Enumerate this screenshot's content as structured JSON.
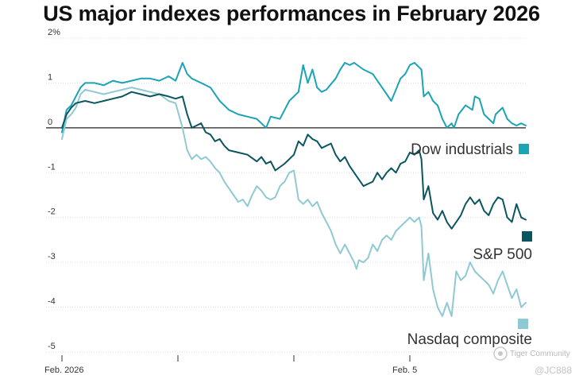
{
  "chart_data": {
    "type": "line",
    "title": "US major indexes performances in February 2026",
    "ylim": [
      -5,
      2
    ],
    "y_ticks": [
      {
        "value": 2,
        "label": "2%"
      },
      {
        "value": 1,
        "label": "1"
      },
      {
        "value": 0,
        "label": "0"
      },
      {
        "value": -1,
        "label": "-1"
      },
      {
        "value": -2,
        "label": "-2"
      },
      {
        "value": -3,
        "label": "-3"
      },
      {
        "value": -4,
        "label": "-4"
      },
      {
        "value": -5,
        "label": "-5"
      }
    ],
    "x_ticks": [
      {
        "t": 0,
        "label": "Feb. 2026"
      },
      {
        "t": 0.25,
        "label": ""
      },
      {
        "t": 0.5,
        "label": ""
      },
      {
        "t": 0.75,
        "label": "Feb. 5"
      }
    ],
    "series": [
      {
        "name": "Dow industrials",
        "color": "#1ba3b6",
        "points": [
          [
            0,
            -0.1
          ],
          [
            0.01,
            0.4
          ],
          [
            0.02,
            0.5
          ],
          [
            0.03,
            0.7
          ],
          [
            0.04,
            0.9
          ],
          [
            0.05,
            1.0
          ],
          [
            0.07,
            1.0
          ],
          [
            0.09,
            0.95
          ],
          [
            0.11,
            1.05
          ],
          [
            0.13,
            1.0
          ],
          [
            0.15,
            1.05
          ],
          [
            0.17,
            1.1
          ],
          [
            0.19,
            1.1
          ],
          [
            0.21,
            1.05
          ],
          [
            0.23,
            1.15
          ],
          [
            0.245,
            1.05
          ],
          [
            0.26,
            1.45
          ],
          [
            0.27,
            1.2
          ],
          [
            0.28,
            1.1
          ],
          [
            0.3,
            1.0
          ],
          [
            0.32,
            0.9
          ],
          [
            0.34,
            0.6
          ],
          [
            0.36,
            0.4
          ],
          [
            0.38,
            0.3
          ],
          [
            0.4,
            0.25
          ],
          [
            0.42,
            0.2
          ],
          [
            0.43,
            0.1
          ],
          [
            0.44,
            0.0
          ],
          [
            0.45,
            0.25
          ],
          [
            0.47,
            0.2
          ],
          [
            0.49,
            0.6
          ],
          [
            0.51,
            0.8
          ],
          [
            0.52,
            1.4
          ],
          [
            0.53,
            1.0
          ],
          [
            0.54,
            1.3
          ],
          [
            0.55,
            0.9
          ],
          [
            0.56,
            0.8
          ],
          [
            0.57,
            0.85
          ],
          [
            0.59,
            1.1
          ],
          [
            0.6,
            1.3
          ],
          [
            0.61,
            1.45
          ],
          [
            0.62,
            1.4
          ],
          [
            0.63,
            1.45
          ],
          [
            0.65,
            1.3
          ],
          [
            0.67,
            1.2
          ],
          [
            0.68,
            1.05
          ],
          [
            0.69,
            0.9
          ],
          [
            0.7,
            0.75
          ],
          [
            0.71,
            0.6
          ],
          [
            0.72,
            0.85
          ],
          [
            0.73,
            1.1
          ],
          [
            0.74,
            1.2
          ],
          [
            0.75,
            1.4
          ],
          [
            0.76,
            1.45
          ],
          [
            0.77,
            1.35
          ],
          [
            0.775,
            1.3
          ],
          [
            0.78,
            0.7
          ],
          [
            0.79,
            0.8
          ],
          [
            0.8,
            0.6
          ],
          [
            0.81,
            0.5
          ],
          [
            0.82,
            0.2
          ],
          [
            0.83,
            0.0
          ],
          [
            0.84,
            0.1
          ],
          [
            0.845,
            0.0
          ],
          [
            0.855,
            0.3
          ],
          [
            0.87,
            0.5
          ],
          [
            0.885,
            0.4
          ],
          [
            0.89,
            0.7
          ],
          [
            0.9,
            0.65
          ],
          [
            0.91,
            0.3
          ],
          [
            0.92,
            0.2
          ],
          [
            0.93,
            0.1
          ],
          [
            0.935,
            0.3
          ],
          [
            0.95,
            0.45
          ],
          [
            0.96,
            0.2
          ],
          [
            0.97,
            0.1
          ],
          [
            0.98,
            0.05
          ],
          [
            0.99,
            0.1
          ],
          [
            1.0,
            0.05
          ]
        ]
      },
      {
        "name": "S&P 500",
        "color": "#0b5560",
        "points": [
          [
            0,
            0.0
          ],
          [
            0.01,
            0.3
          ],
          [
            0.02,
            0.45
          ],
          [
            0.03,
            0.55
          ],
          [
            0.05,
            0.6
          ],
          [
            0.07,
            0.55
          ],
          [
            0.09,
            0.6
          ],
          [
            0.11,
            0.65
          ],
          [
            0.13,
            0.7
          ],
          [
            0.15,
            0.8
          ],
          [
            0.17,
            0.75
          ],
          [
            0.19,
            0.7
          ],
          [
            0.21,
            0.75
          ],
          [
            0.23,
            0.7
          ],
          [
            0.245,
            0.65
          ],
          [
            0.26,
            0.7
          ],
          [
            0.27,
            0.3
          ],
          [
            0.28,
            0.0
          ],
          [
            0.29,
            0.05
          ],
          [
            0.3,
            0.1
          ],
          [
            0.31,
            -0.1
          ],
          [
            0.32,
            -0.15
          ],
          [
            0.33,
            -0.3
          ],
          [
            0.34,
            -0.25
          ],
          [
            0.35,
            -0.4
          ],
          [
            0.36,
            -0.5
          ],
          [
            0.38,
            -0.55
          ],
          [
            0.4,
            -0.6
          ],
          [
            0.42,
            -0.75
          ],
          [
            0.43,
            -0.65
          ],
          [
            0.44,
            -0.8
          ],
          [
            0.45,
            -0.75
          ],
          [
            0.46,
            -0.95
          ],
          [
            0.48,
            -0.8
          ],
          [
            0.5,
            -0.6
          ],
          [
            0.51,
            -0.3
          ],
          [
            0.52,
            -0.4
          ],
          [
            0.53,
            -0.15
          ],
          [
            0.54,
            -0.25
          ],
          [
            0.55,
            -0.3
          ],
          [
            0.56,
            -0.45
          ],
          [
            0.57,
            -0.4
          ],
          [
            0.58,
            -0.35
          ],
          [
            0.59,
            -0.6
          ],
          [
            0.6,
            -0.75
          ],
          [
            0.61,
            -0.65
          ],
          [
            0.62,
            -0.85
          ],
          [
            0.63,
            -1.0
          ],
          [
            0.64,
            -1.15
          ],
          [
            0.65,
            -1.3
          ],
          [
            0.66,
            -1.25
          ],
          [
            0.67,
            -1.2
          ],
          [
            0.68,
            -1.0
          ],
          [
            0.69,
            -1.15
          ],
          [
            0.7,
            -1.0
          ],
          [
            0.71,
            -0.9
          ],
          [
            0.72,
            -1.0
          ],
          [
            0.73,
            -0.8
          ],
          [
            0.74,
            -0.75
          ],
          [
            0.75,
            -0.55
          ],
          [
            0.76,
            -0.6
          ],
          [
            0.77,
            -0.5
          ],
          [
            0.775,
            -0.7
          ],
          [
            0.78,
            -1.6
          ],
          [
            0.79,
            -1.3
          ],
          [
            0.8,
            -1.9
          ],
          [
            0.81,
            -2.05
          ],
          [
            0.82,
            -1.85
          ],
          [
            0.83,
            -2.1
          ],
          [
            0.84,
            -2.25
          ],
          [
            0.85,
            -2.1
          ],
          [
            0.86,
            -1.95
          ],
          [
            0.87,
            -1.7
          ],
          [
            0.88,
            -1.55
          ],
          [
            0.89,
            -1.7
          ],
          [
            0.9,
            -1.6
          ],
          [
            0.91,
            -1.85
          ],
          [
            0.92,
            -1.95
          ],
          [
            0.93,
            -1.7
          ],
          [
            0.94,
            -1.55
          ],
          [
            0.95,
            -1.6
          ],
          [
            0.96,
            -2.0
          ],
          [
            0.97,
            -2.1
          ],
          [
            0.98,
            -1.7
          ],
          [
            0.99,
            -2.0
          ],
          [
            1.0,
            -2.05
          ]
        ]
      },
      {
        "name": "Nasdaq composite",
        "color": "#8fcad4",
        "points": [
          [
            0,
            -0.25
          ],
          [
            0.01,
            0.2
          ],
          [
            0.02,
            0.3
          ],
          [
            0.03,
            0.45
          ],
          [
            0.04,
            0.75
          ],
          [
            0.05,
            0.85
          ],
          [
            0.07,
            0.8
          ],
          [
            0.09,
            0.75
          ],
          [
            0.11,
            0.8
          ],
          [
            0.13,
            0.85
          ],
          [
            0.15,
            0.9
          ],
          [
            0.17,
            0.85
          ],
          [
            0.19,
            0.8
          ],
          [
            0.21,
            0.75
          ],
          [
            0.23,
            0.6
          ],
          [
            0.245,
            0.55
          ],
          [
            0.26,
            0.0
          ],
          [
            0.27,
            -0.5
          ],
          [
            0.28,
            -0.7
          ],
          [
            0.29,
            -0.6
          ],
          [
            0.3,
            -0.7
          ],
          [
            0.31,
            -0.65
          ],
          [
            0.32,
            -0.75
          ],
          [
            0.33,
            -0.9
          ],
          [
            0.34,
            -1.0
          ],
          [
            0.35,
            -1.2
          ],
          [
            0.36,
            -1.35
          ],
          [
            0.37,
            -1.5
          ],
          [
            0.38,
            -1.65
          ],
          [
            0.39,
            -1.6
          ],
          [
            0.4,
            -1.75
          ],
          [
            0.41,
            -1.5
          ],
          [
            0.42,
            -1.3
          ],
          [
            0.43,
            -1.4
          ],
          [
            0.44,
            -1.55
          ],
          [
            0.45,
            -1.6
          ],
          [
            0.46,
            -1.55
          ],
          [
            0.47,
            -1.3
          ],
          [
            0.48,
            -1.2
          ],
          [
            0.49,
            -1.0
          ],
          [
            0.5,
            -0.95
          ],
          [
            0.51,
            -1.6
          ],
          [
            0.52,
            -1.7
          ],
          [
            0.53,
            -1.6
          ],
          [
            0.54,
            -1.75
          ],
          [
            0.55,
            -1.65
          ],
          [
            0.56,
            -1.9
          ],
          [
            0.57,
            -2.1
          ],
          [
            0.58,
            -2.3
          ],
          [
            0.59,
            -2.6
          ],
          [
            0.6,
            -2.8
          ],
          [
            0.61,
            -2.6
          ],
          [
            0.62,
            -2.8
          ],
          [
            0.63,
            -3.0
          ],
          [
            0.635,
            -3.15
          ],
          [
            0.64,
            -2.95
          ],
          [
            0.65,
            -3.0
          ],
          [
            0.66,
            -2.9
          ],
          [
            0.67,
            -2.6
          ],
          [
            0.68,
            -2.75
          ],
          [
            0.69,
            -2.5
          ],
          [
            0.7,
            -2.4
          ],
          [
            0.71,
            -2.5
          ],
          [
            0.72,
            -2.3
          ],
          [
            0.73,
            -2.2
          ],
          [
            0.74,
            -2.1
          ],
          [
            0.75,
            -2.0
          ],
          [
            0.76,
            -2.1
          ],
          [
            0.77,
            -2.0
          ],
          [
            0.775,
            -2.2
          ],
          [
            0.78,
            -3.4
          ],
          [
            0.79,
            -2.8
          ],
          [
            0.8,
            -3.6
          ],
          [
            0.81,
            -4.0
          ],
          [
            0.82,
            -4.2
          ],
          [
            0.83,
            -3.9
          ],
          [
            0.84,
            -4.2
          ],
          [
            0.845,
            -3.7
          ],
          [
            0.85,
            -3.2
          ],
          [
            0.86,
            -3.4
          ],
          [
            0.87,
            -3.3
          ],
          [
            0.88,
            -3.0
          ],
          [
            0.89,
            -3.2
          ],
          [
            0.9,
            -3.3
          ],
          [
            0.91,
            -3.4
          ],
          [
            0.92,
            -3.5
          ],
          [
            0.93,
            -3.7
          ],
          [
            0.94,
            -3.4
          ],
          [
            0.95,
            -3.2
          ],
          [
            0.96,
            -3.5
          ],
          [
            0.97,
            -3.8
          ],
          [
            0.98,
            -3.6
          ],
          [
            0.99,
            -4.0
          ],
          [
            1.0,
            -3.9
          ]
        ]
      }
    ],
    "legend": [
      {
        "label": "Dow industrials",
        "color": "#1ba3b6"
      },
      {
        "label": "S&P 500",
        "color": "#0b5560"
      },
      {
        "label": "Nasdaq composite",
        "color": "#8fcad4"
      }
    ]
  },
  "watermark": {
    "brand": "Tiger Community",
    "handle": "@JC888"
  }
}
